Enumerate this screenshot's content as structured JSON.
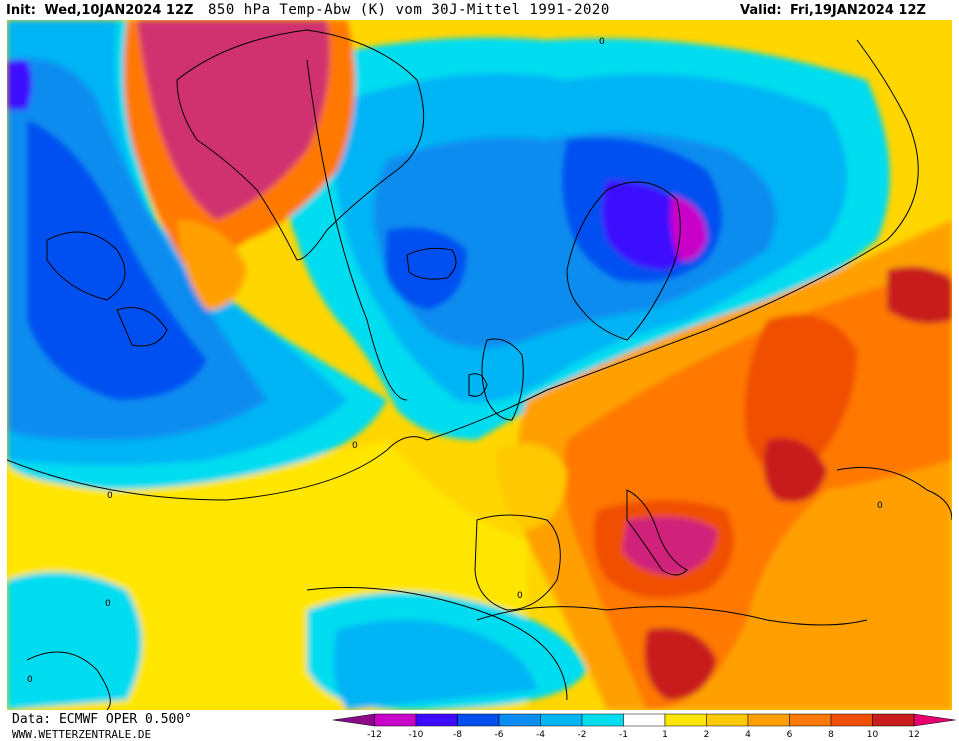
{
  "header": {
    "init_label": "Init:",
    "init_value": "Wed,10JAN2024 12Z",
    "title": "850 hPa Temp-Abw (K) vom 30J-Mittel 1991-2020",
    "valid_label": "Valid:",
    "valid_value": "Fri,19JAN2024 12Z"
  },
  "footer": {
    "data_source": "Data: ECMWF OPER 0.500°",
    "website": "WWW.WETTERZENTRALE.DE"
  },
  "legend": {
    "ticks": [
      "-12",
      "-10",
      "-8",
      "-6",
      "-4",
      "-2",
      "-1",
      "1",
      "2",
      "4",
      "6",
      "8",
      "10",
      "12"
    ],
    "colors": [
      "#8a0a8a",
      "#c800c8",
      "#3c0aff",
      "#0050f0",
      "#0a8cf0",
      "#00b4f5",
      "#00dcf0",
      "#ffffff",
      "#ffe600",
      "#ffc800",
      "#ffa000",
      "#ff7800",
      "#f05000",
      "#c81e1e",
      "#e6006e"
    ]
  },
  "contour_labels": [
    "0",
    "0",
    "0",
    "0",
    "0",
    "0",
    "0"
  ],
  "icons": [
    "land-border-lines",
    "anomaly-contour-lines"
  ]
}
